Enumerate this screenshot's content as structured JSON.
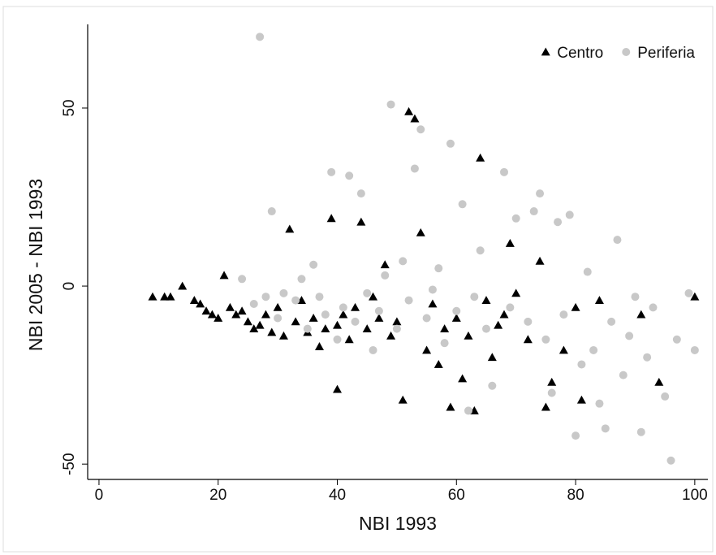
{
  "chart_data": {
    "type": "scatter",
    "x_label": "NBI 1993",
    "y_label": "NBI 2005 - NBI 1993",
    "xlim": [
      -1.9,
      102.2
    ],
    "ylim": [
      -54.3,
      73.5
    ],
    "xticks": [
      0,
      20,
      40,
      60,
      80,
      100
    ],
    "yticks": [
      -50,
      0,
      50
    ],
    "legend": "upper right",
    "series": [
      {
        "name": "Centro",
        "color": "#000000",
        "marker": "triangle",
        "x": [
          9,
          11,
          12,
          14,
          16,
          17,
          18,
          19,
          20,
          21,
          22,
          23,
          24,
          25,
          26,
          27,
          28,
          29,
          30,
          31,
          32,
          33,
          34,
          35,
          36,
          37,
          38,
          39,
          40,
          40,
          41,
          42,
          43,
          44,
          45,
          46,
          47,
          48,
          49,
          50,
          51,
          52,
          53,
          54,
          55,
          56,
          57,
          58,
          59,
          60,
          61,
          62,
          63,
          64,
          65,
          66,
          67,
          68,
          69,
          70,
          72,
          74,
          75,
          76,
          78,
          80,
          81,
          84,
          91,
          94,
          100
        ],
        "values": [
          -3,
          -3,
          -3,
          0,
          -4,
          -5,
          -7,
          -8,
          -9,
          3,
          -6,
          -8,
          -7,
          -10,
          -12,
          -11,
          -8,
          -13,
          -6,
          -14,
          16,
          -10,
          -4,
          -13,
          -9,
          -17,
          -12,
          19,
          -11,
          -29,
          -8,
          -15,
          -6,
          18,
          -12,
          -3,
          -9,
          6,
          -14,
          -10,
          -32,
          49,
          47,
          15,
          -18,
          -5,
          -22,
          -12,
          -34,
          -9,
          -26,
          -14,
          -35,
          36,
          -4,
          -20,
          -11,
          -8,
          12,
          -2,
          -15,
          7,
          -34,
          -27,
          -18,
          -6,
          -32,
          -4,
          -8,
          -27,
          -3
        ]
      },
      {
        "name": "Periferia",
        "color": "#c8c8c8",
        "marker": "circle",
        "x": [
          24,
          26,
          27,
          28,
          29,
          30,
          31,
          33,
          34,
          35,
          36,
          37,
          38,
          39,
          40,
          41,
          42,
          43,
          44,
          45,
          46,
          47,
          48,
          49,
          50,
          51,
          52,
          53,
          54,
          55,
          56,
          57,
          58,
          59,
          60,
          61,
          62,
          63,
          64,
          65,
          66,
          68,
          69,
          70,
          72,
          73,
          74,
          75,
          76,
          77,
          78,
          79,
          80,
          81,
          82,
          83,
          84,
          85,
          86,
          87,
          88,
          89,
          90,
          91,
          92,
          93,
          95,
          96,
          97,
          99,
          100
        ],
        "values": [
          2,
          -5,
          70,
          -3,
          21,
          -9,
          -2,
          -4,
          2,
          -12,
          6,
          -3,
          -8,
          32,
          -15,
          -6,
          31,
          -10,
          26,
          -2,
          -18,
          -7,
          3,
          51,
          -12,
          7,
          -4,
          33,
          44,
          -9,
          -1,
          5,
          -16,
          40,
          -7,
          23,
          -35,
          -3,
          10,
          -12,
          -28,
          32,
          -6,
          19,
          -10,
          21,
          26,
          -15,
          -30,
          18,
          -8,
          20,
          -42,
          -22,
          4,
          -18,
          -33,
          -40,
          -10,
          13,
          -25,
          -14,
          -3,
          -41,
          -20,
          -6,
          -31,
          -49,
          -15,
          -2,
          -18
        ]
      }
    ]
  }
}
